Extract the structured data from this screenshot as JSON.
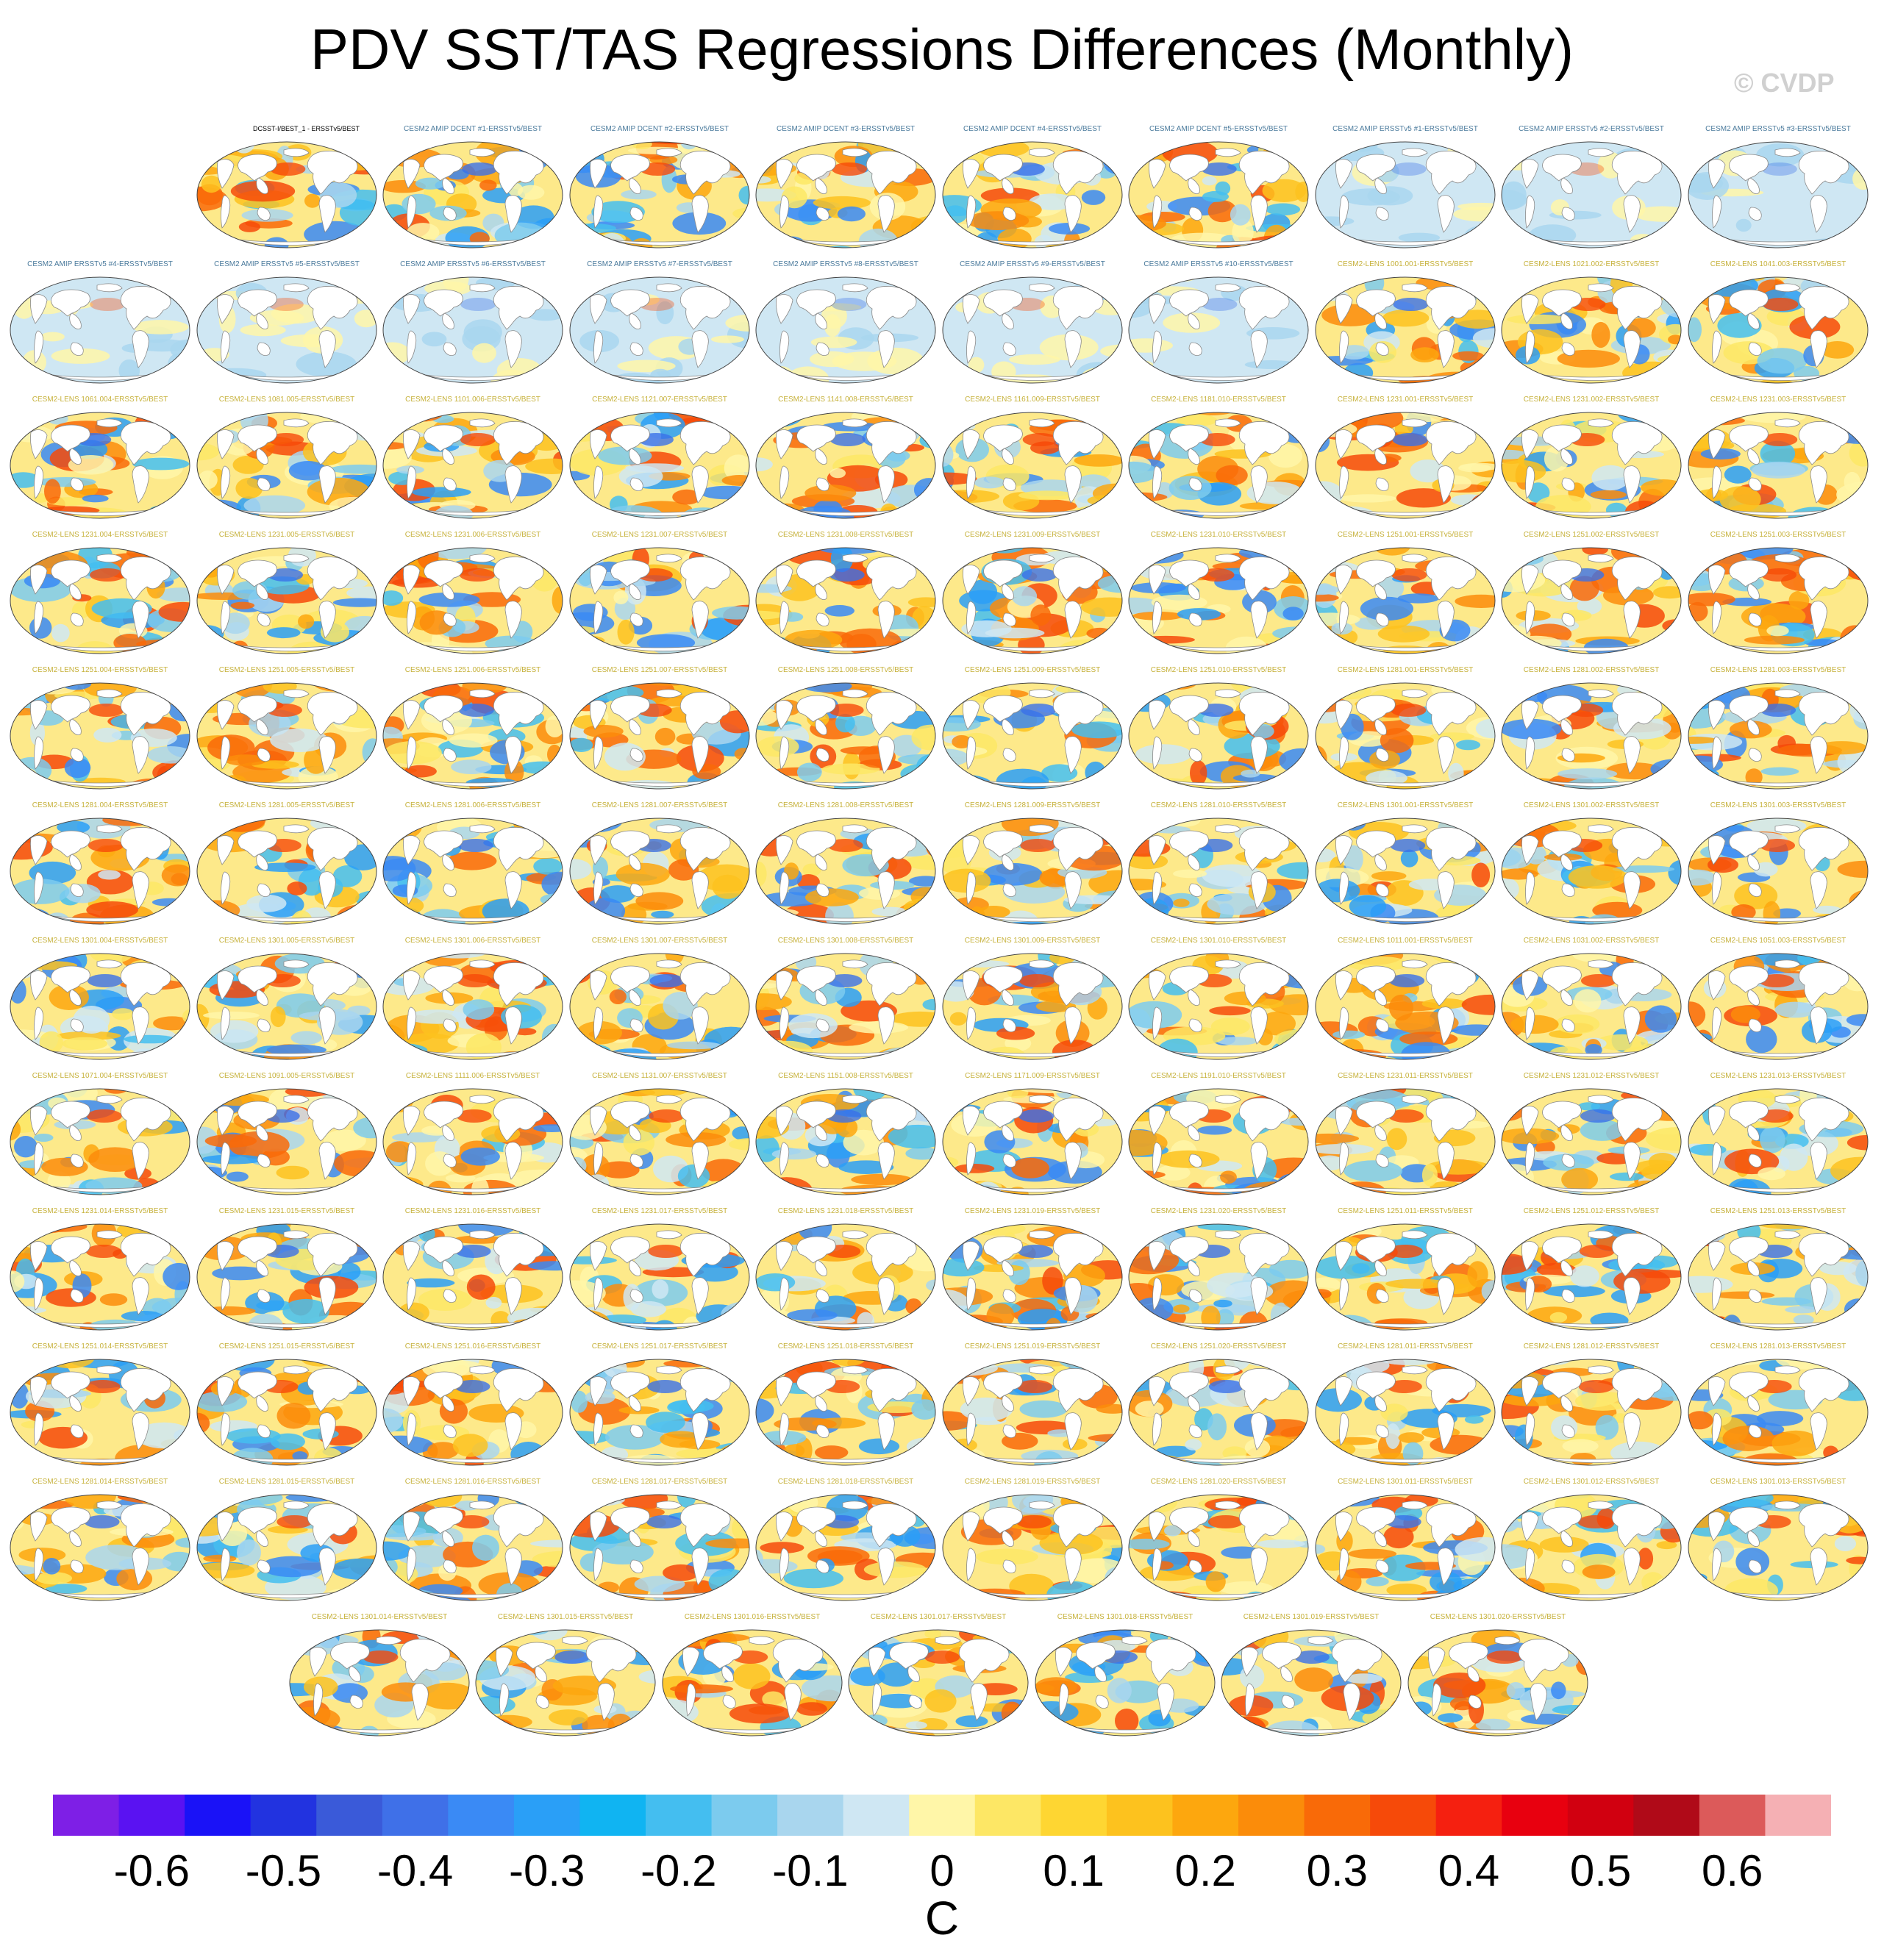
{
  "title": "PDV SST/TAS Regressions Differences (Monthly)",
  "watermark": "© CVDP",
  "panels": [
    {
      "label": "DCSST-I/BEST_1 - ERSSTv5/BEST",
      "kind": "obs"
    },
    {
      "label": "CESM2 AMIP DCENT #1-ERSSTv5/BEST",
      "kind": "amip-dcent"
    },
    {
      "label": "CESM2 AMIP DCENT #2-ERSSTv5/BEST",
      "kind": "amip-dcent"
    },
    {
      "label": "CESM2 AMIP DCENT #3-ERSSTv5/BEST",
      "kind": "amip-dcent"
    },
    {
      "label": "CESM2 AMIP DCENT #4-ERSSTv5/BEST",
      "kind": "amip-dcent"
    },
    {
      "label": "CESM2 AMIP DCENT #5-ERSSTv5/BEST",
      "kind": "amip-dcent"
    },
    {
      "label": "CESM2 AMIP ERSSTv5 #1-ERSSTv5/BEST",
      "kind": "amip"
    },
    {
      "label": "CESM2 AMIP ERSSTv5 #2-ERSSTv5/BEST",
      "kind": "amip"
    },
    {
      "label": "CESM2 AMIP ERSSTv5 #3-ERSSTv5/BEST",
      "kind": "amip"
    },
    {
      "label": "CESM2 AMIP ERSSTv5 #4-ERSSTv5/BEST",
      "kind": "amip"
    },
    {
      "label": "CESM2 AMIP ERSSTv5 #5-ERSSTv5/BEST",
      "kind": "amip"
    },
    {
      "label": "CESM2 AMIP ERSSTv5 #6-ERSSTv5/BEST",
      "kind": "amip"
    },
    {
      "label": "CESM2 AMIP ERSSTv5 #7-ERSSTv5/BEST",
      "kind": "amip"
    },
    {
      "label": "CESM2 AMIP ERSSTv5 #8-ERSSTv5/BEST",
      "kind": "amip"
    },
    {
      "label": "CESM2 AMIP ERSSTv5 #9-ERSSTv5/BEST",
      "kind": "amip"
    },
    {
      "label": "CESM2 AMIP ERSSTv5 #10-ERSSTv5/BEST",
      "kind": "amip"
    },
    {
      "label": "CESM2-LENS 1001.001-ERSSTv5/BEST",
      "kind": "lens"
    },
    {
      "label": "CESM2-LENS 1021.002-ERSSTv5/BEST",
      "kind": "lens"
    },
    {
      "label": "CESM2-LENS 1041.003-ERSSTv5/BEST",
      "kind": "lens"
    },
    {
      "label": "CESM2-LENS 1061.004-ERSSTv5/BEST",
      "kind": "lens"
    },
    {
      "label": "CESM2-LENS 1081.005-ERSSTv5/BEST",
      "kind": "lens"
    },
    {
      "label": "CESM2-LENS 1101.006-ERSSTv5/BEST",
      "kind": "lens"
    },
    {
      "label": "CESM2-LENS 1121.007-ERSSTv5/BEST",
      "kind": "lens"
    },
    {
      "label": "CESM2-LENS 1141.008-ERSSTv5/BEST",
      "kind": "lens"
    },
    {
      "label": "CESM2-LENS 1161.009-ERSSTv5/BEST",
      "kind": "lens"
    },
    {
      "label": "CESM2-LENS 1181.010-ERSSTv5/BEST",
      "kind": "lens"
    },
    {
      "label": "CESM2-LENS 1231.001-ERSSTv5/BEST",
      "kind": "lens"
    },
    {
      "label": "CESM2-LENS 1231.002-ERSSTv5/BEST",
      "kind": "lens"
    },
    {
      "label": "CESM2-LENS 1231.003-ERSSTv5/BEST",
      "kind": "lens"
    },
    {
      "label": "CESM2-LENS 1231.004-ERSSTv5/BEST",
      "kind": "lens"
    },
    {
      "label": "CESM2-LENS 1231.005-ERSSTv5/BEST",
      "kind": "lens"
    },
    {
      "label": "CESM2-LENS 1231.006-ERSSTv5/BEST",
      "kind": "lens"
    },
    {
      "label": "CESM2-LENS 1231.007-ERSSTv5/BEST",
      "kind": "lens"
    },
    {
      "label": "CESM2-LENS 1231.008-ERSSTv5/BEST",
      "kind": "lens"
    },
    {
      "label": "CESM2-LENS 1231.009-ERSSTv5/BEST",
      "kind": "lens"
    },
    {
      "label": "CESM2-LENS 1231.010-ERSSTv5/BEST",
      "kind": "lens"
    },
    {
      "label": "CESM2-LENS 1251.001-ERSSTv5/BEST",
      "kind": "lens"
    },
    {
      "label": "CESM2-LENS 1251.002-ERSSTv5/BEST",
      "kind": "lens"
    },
    {
      "label": "CESM2-LENS 1251.003-ERSSTv5/BEST",
      "kind": "lens"
    },
    {
      "label": "CESM2-LENS 1251.004-ERSSTv5/BEST",
      "kind": "lens"
    },
    {
      "label": "CESM2-LENS 1251.005-ERSSTv5/BEST",
      "kind": "lens"
    },
    {
      "label": "CESM2-LENS 1251.006-ERSSTv5/BEST",
      "kind": "lens"
    },
    {
      "label": "CESM2-LENS 1251.007-ERSSTv5/BEST",
      "kind": "lens"
    },
    {
      "label": "CESM2-LENS 1251.008-ERSSTv5/BEST",
      "kind": "lens"
    },
    {
      "label": "CESM2-LENS 1251.009-ERSSTv5/BEST",
      "kind": "lens"
    },
    {
      "label": "CESM2-LENS 1251.010-ERSSTv5/BEST",
      "kind": "lens"
    },
    {
      "label": "CESM2-LENS 1281.001-ERSSTv5/BEST",
      "kind": "lens"
    },
    {
      "label": "CESM2-LENS 1281.002-ERSSTv5/BEST",
      "kind": "lens"
    },
    {
      "label": "CESM2-LENS 1281.003-ERSSTv5/BEST",
      "kind": "lens"
    },
    {
      "label": "CESM2-LENS 1281.004-ERSSTv5/BEST",
      "kind": "lens"
    },
    {
      "label": "CESM2-LENS 1281.005-ERSSTv5/BEST",
      "kind": "lens"
    },
    {
      "label": "CESM2-LENS 1281.006-ERSSTv5/BEST",
      "kind": "lens"
    },
    {
      "label": "CESM2-LENS 1281.007-ERSSTv5/BEST",
      "kind": "lens"
    },
    {
      "label": "CESM2-LENS 1281.008-ERSSTv5/BEST",
      "kind": "lens"
    },
    {
      "label": "CESM2-LENS 1281.009-ERSSTv5/BEST",
      "kind": "lens"
    },
    {
      "label": "CESM2-LENS 1281.010-ERSSTv5/BEST",
      "kind": "lens"
    },
    {
      "label": "CESM2-LENS 1301.001-ERSSTv5/BEST",
      "kind": "lens"
    },
    {
      "label": "CESM2-LENS 1301.002-ERSSTv5/BEST",
      "kind": "lens"
    },
    {
      "label": "CESM2-LENS 1301.003-ERSSTv5/BEST",
      "kind": "lens"
    },
    {
      "label": "CESM2-LENS 1301.004-ERSSTv5/BEST",
      "kind": "lens"
    },
    {
      "label": "CESM2-LENS 1301.005-ERSSTv5/BEST",
      "kind": "lens"
    },
    {
      "label": "CESM2-LENS 1301.006-ERSSTv5/BEST",
      "kind": "lens"
    },
    {
      "label": "CESM2-LENS 1301.007-ERSSTv5/BEST",
      "kind": "lens"
    },
    {
      "label": "CESM2-LENS 1301.008-ERSSTv5/BEST",
      "kind": "lens"
    },
    {
      "label": "CESM2-LENS 1301.009-ERSSTv5/BEST",
      "kind": "lens"
    },
    {
      "label": "CESM2-LENS 1301.010-ERSSTv5/BEST",
      "kind": "lens"
    },
    {
      "label": "CESM2-LENS 1011.001-ERSSTv5/BEST",
      "kind": "lens"
    },
    {
      "label": "CESM2-LENS 1031.002-ERSSTv5/BEST",
      "kind": "lens"
    },
    {
      "label": "CESM2-LENS 1051.003-ERSSTv5/BEST",
      "kind": "lens"
    },
    {
      "label": "CESM2-LENS 1071.004-ERSSTv5/BEST",
      "kind": "lens"
    },
    {
      "label": "CESM2-LENS 1091.005-ERSSTv5/BEST",
      "kind": "lens"
    },
    {
      "label": "CESM2-LENS 1111.006-ERSSTv5/BEST",
      "kind": "lens"
    },
    {
      "label": "CESM2-LENS 1131.007-ERSSTv5/BEST",
      "kind": "lens"
    },
    {
      "label": "CESM2-LENS 1151.008-ERSSTv5/BEST",
      "kind": "lens"
    },
    {
      "label": "CESM2-LENS 1171.009-ERSSTv5/BEST",
      "kind": "lens"
    },
    {
      "label": "CESM2-LENS 1191.010-ERSSTv5/BEST",
      "kind": "lens"
    },
    {
      "label": "CESM2-LENS 1231.011-ERSSTv5/BEST",
      "kind": "lens"
    },
    {
      "label": "CESM2-LENS 1231.012-ERSSTv5/BEST",
      "kind": "lens"
    },
    {
      "label": "CESM2-LENS 1231.013-ERSSTv5/BEST",
      "kind": "lens"
    },
    {
      "label": "CESM2-LENS 1231.014-ERSSTv5/BEST",
      "kind": "lens"
    },
    {
      "label": "CESM2-LENS 1231.015-ERSSTv5/BEST",
      "kind": "lens"
    },
    {
      "label": "CESM2-LENS 1231.016-ERSSTv5/BEST",
      "kind": "lens"
    },
    {
      "label": "CESM2-LENS 1231.017-ERSSTv5/BEST",
      "kind": "lens"
    },
    {
      "label": "CESM2-LENS 1231.018-ERSSTv5/BEST",
      "kind": "lens"
    },
    {
      "label": "CESM2-LENS 1231.019-ERSSTv5/BEST",
      "kind": "lens"
    },
    {
      "label": "CESM2-LENS 1231.020-ERSSTv5/BEST",
      "kind": "lens"
    },
    {
      "label": "CESM2-LENS 1251.011-ERSSTv5/BEST",
      "kind": "lens"
    },
    {
      "label": "CESM2-LENS 1251.012-ERSSTv5/BEST",
      "kind": "lens"
    },
    {
      "label": "CESM2-LENS 1251.013-ERSSTv5/BEST",
      "kind": "lens"
    },
    {
      "label": "CESM2-LENS 1251.014-ERSSTv5/BEST",
      "kind": "lens"
    },
    {
      "label": "CESM2-LENS 1251.015-ERSSTv5/BEST",
      "kind": "lens"
    },
    {
      "label": "CESM2-LENS 1251.016-ERSSTv5/BEST",
      "kind": "lens"
    },
    {
      "label": "CESM2-LENS 1251.017-ERSSTv5/BEST",
      "kind": "lens"
    },
    {
      "label": "CESM2-LENS 1251.018-ERSSTv5/BEST",
      "kind": "lens"
    },
    {
      "label": "CESM2-LENS 1251.019-ERSSTv5/BEST",
      "kind": "lens"
    },
    {
      "label": "CESM2-LENS 1251.020-ERSSTv5/BEST",
      "kind": "lens"
    },
    {
      "label": "CESM2-LENS 1281.011-ERSSTv5/BEST",
      "kind": "lens"
    },
    {
      "label": "CESM2-LENS 1281.012-ERSSTv5/BEST",
      "kind": "lens"
    },
    {
      "label": "CESM2-LENS 1281.013-ERSSTv5/BEST",
      "kind": "lens"
    },
    {
      "label": "CESM2-LENS 1281.014-ERSSTv5/BEST",
      "kind": "lens"
    },
    {
      "label": "CESM2-LENS 1281.015-ERSSTv5/BEST",
      "kind": "lens"
    },
    {
      "label": "CESM2-LENS 1281.016-ERSSTv5/BEST",
      "kind": "lens"
    },
    {
      "label": "CESM2-LENS 1281.017-ERSSTv5/BEST",
      "kind": "lens"
    },
    {
      "label": "CESM2-LENS 1281.018-ERSSTv5/BEST",
      "kind": "lens"
    },
    {
      "label": "CESM2-LENS 1281.019-ERSSTv5/BEST",
      "kind": "lens"
    },
    {
      "label": "CESM2-LENS 1281.020-ERSSTv5/BEST",
      "kind": "lens"
    },
    {
      "label": "CESM2-LENS 1301.011-ERSSTv5/BEST",
      "kind": "lens"
    },
    {
      "label": "CESM2-LENS 1301.012-ERSSTv5/BEST",
      "kind": "lens"
    },
    {
      "label": "CESM2-LENS 1301.013-ERSSTv5/BEST",
      "kind": "lens"
    },
    {
      "label": "CESM2-LENS 1301.014-ERSSTv5/BEST",
      "kind": "lens"
    },
    {
      "label": "CESM2-LENS 1301.015-ERSSTv5/BEST",
      "kind": "lens"
    },
    {
      "label": "CESM2-LENS 1301.016-ERSSTv5/BEST",
      "kind": "lens"
    },
    {
      "label": "CESM2-LENS 1301.017-ERSSTv5/BEST",
      "kind": "lens"
    },
    {
      "label": "CESM2-LENS 1301.018-ERSSTv5/BEST",
      "kind": "lens"
    },
    {
      "label": "CESM2-LENS 1301.019-ERSSTv5/BEST",
      "kind": "lens"
    },
    {
      "label": "CESM2-LENS 1301.020-ERSSTv5/BEST",
      "kind": "lens"
    }
  ],
  "colorbar": {
    "colors": [
      "#7e1fe6",
      "#5a12f2",
      "#1a12f7",
      "#2233e0",
      "#3a5ad9",
      "#3f70e8",
      "#3a8af5",
      "#2a9ff7",
      "#10b4f2",
      "#44bef0",
      "#7ccbee",
      "#a9d6ee",
      "#cfe7f3",
      "#fff6a8",
      "#fde765",
      "#fed632",
      "#fdc21e",
      "#fda70e",
      "#fb8c0a",
      "#f96a08",
      "#f64a09",
      "#f52010",
      "#e8000f",
      "#d10010",
      "#b00a18",
      "#dc5a5a",
      "#f5b0b4"
    ],
    "tick_labels": [
      "-0.6",
      "-0.5",
      "-0.4",
      "-0.3",
      "-0.2",
      "-0.1",
      "0",
      "0.1",
      "0.2",
      "0.3",
      "0.4",
      "0.5",
      "0.6"
    ],
    "units": "C"
  }
}
